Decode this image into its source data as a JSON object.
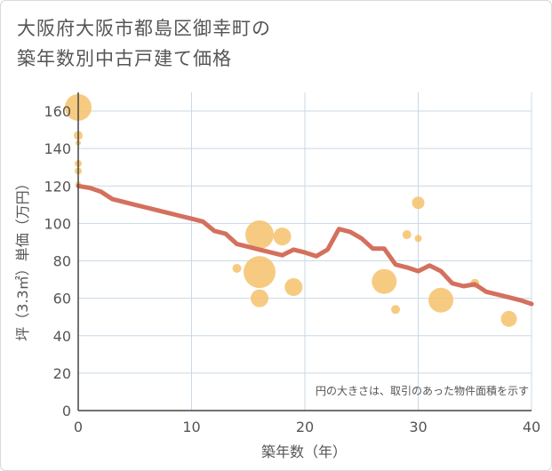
{
  "title": {
    "line1": "大阪府大阪市都島区御幸町の",
    "line2": "築年数別中古戸建て価格"
  },
  "chart_data": {
    "type": "scatter",
    "xlabel": "築年数（年）",
    "ylabel": "坪（3.3㎡）単価（万円）",
    "xlim": [
      0,
      40
    ],
    "ylim": [
      0,
      170
    ],
    "xticks": [
      0,
      10,
      20,
      30,
      40
    ],
    "yticks": [
      0,
      20,
      40,
      60,
      80,
      100,
      120,
      140,
      160
    ],
    "grid": true,
    "annotation": "円の大きさは、取引のあった物件面積を示す",
    "colors": {
      "bubble": "#f5c26b",
      "line": "#d4705e",
      "grid": "#c9d8e6"
    },
    "bubbles": [
      {
        "x": 0,
        "y": 162,
        "size": 15
      },
      {
        "x": 0,
        "y": 147,
        "size": 5
      },
      {
        "x": 0,
        "y": 143,
        "size": 3
      },
      {
        "x": 0,
        "y": 132,
        "size": 4
      },
      {
        "x": 0,
        "y": 128,
        "size": 4
      },
      {
        "x": 0,
        "y": 121,
        "size": 3
      },
      {
        "x": 16,
        "y": 94,
        "size": 16
      },
      {
        "x": 18,
        "y": 93,
        "size": 10
      },
      {
        "x": 14,
        "y": 76,
        "size": 5
      },
      {
        "x": 16,
        "y": 74,
        "size": 18
      },
      {
        "x": 19,
        "y": 66,
        "size": 10
      },
      {
        "x": 16,
        "y": 60,
        "size": 10
      },
      {
        "x": 27,
        "y": 69,
        "size": 14
      },
      {
        "x": 28,
        "y": 54,
        "size": 5
      },
      {
        "x": 29,
        "y": 94,
        "size": 5
      },
      {
        "x": 30,
        "y": 92,
        "size": 4
      },
      {
        "x": 30,
        "y": 111,
        "size": 7
      },
      {
        "x": 32,
        "y": 59,
        "size": 14
      },
      {
        "x": 35,
        "y": 68,
        "size": 5
      },
      {
        "x": 38,
        "y": 49,
        "size": 9
      }
    ],
    "trend": [
      {
        "x": 0,
        "y": 120
      },
      {
        "x": 1,
        "y": 119
      },
      {
        "x": 2,
        "y": 117
      },
      {
        "x": 3,
        "y": 113
      },
      {
        "x": 4,
        "y": 111.5
      },
      {
        "x": 5,
        "y": 110
      },
      {
        "x": 6,
        "y": 108.5
      },
      {
        "x": 7,
        "y": 107
      },
      {
        "x": 8,
        "y": 105.5
      },
      {
        "x": 9,
        "y": 104
      },
      {
        "x": 10,
        "y": 102.5
      },
      {
        "x": 11,
        "y": 101
      },
      {
        "x": 12,
        "y": 96
      },
      {
        "x": 13,
        "y": 94.5
      },
      {
        "x": 14,
        "y": 89
      },
      {
        "x": 15,
        "y": 87.5
      },
      {
        "x": 16,
        "y": 86
      },
      {
        "x": 17,
        "y": 84.5
      },
      {
        "x": 18,
        "y": 83
      },
      {
        "x": 19,
        "y": 86
      },
      {
        "x": 20,
        "y": 84.5
      },
      {
        "x": 21,
        "y": 82.5
      },
      {
        "x": 22,
        "y": 86
      },
      {
        "x": 23,
        "y": 97
      },
      {
        "x": 24,
        "y": 95.5
      },
      {
        "x": 25,
        "y": 92
      },
      {
        "x": 26,
        "y": 86.5
      },
      {
        "x": 27,
        "y": 86.5
      },
      {
        "x": 28,
        "y": 78
      },
      {
        "x": 29,
        "y": 76.5
      },
      {
        "x": 30,
        "y": 74.5
      },
      {
        "x": 31,
        "y": 77.5
      },
      {
        "x": 32,
        "y": 74.5
      },
      {
        "x": 33,
        "y": 68
      },
      {
        "x": 34,
        "y": 66.5
      },
      {
        "x": 35,
        "y": 67.5
      },
      {
        "x": 36,
        "y": 63.5
      },
      {
        "x": 37,
        "y": 62
      },
      {
        "x": 38,
        "y": 60.5
      },
      {
        "x": 39,
        "y": 59
      },
      {
        "x": 40,
        "y": 57
      }
    ]
  }
}
